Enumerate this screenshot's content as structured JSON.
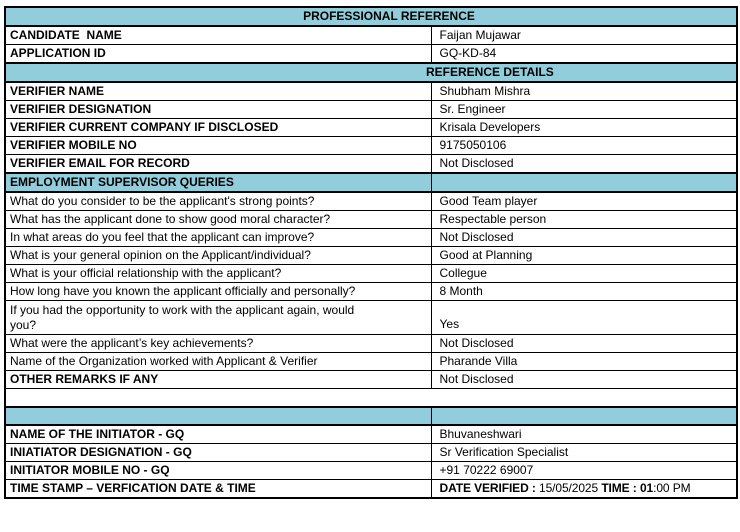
{
  "colors": {
    "header_bg": "#92CDDC",
    "border": "#000000",
    "text": "#000000"
  },
  "header": {
    "title": "PROFESSIONAL REFERENCE"
  },
  "candidate": {
    "label": "CANDIDATE  NAME",
    "value": "Faijan Mujawar"
  },
  "application_id": {
    "label": "APPLICATION ID",
    "value": "GQ-KD-84"
  },
  "reference_details": {
    "section_title": "REFERENCE DETAILS"
  },
  "verifier": {
    "name": {
      "label": "VERIFIER NAME",
      "value": "Shubham Mishra"
    },
    "designation": {
      "label": "VERIFIER DESIGNATION",
      "value": "Sr. Engineer"
    },
    "company": {
      "label": "VERIFIER CURRENT COMPANY IF DISCLOSED",
      "value": "Krisala Developers"
    },
    "mobile": {
      "label": "VERIFIER MOBILE NO",
      "value": "9175050106"
    },
    "email": {
      "label": "VERIFIER EMAIL FOR RECORD",
      "value": "Not Disclosed"
    }
  },
  "supervisor_queries": {
    "section_title": "EMPLOYMENT SUPERVISOR QUERIES",
    "q1": {
      "label": "What do you consider to be the applicant's strong points?",
      "value": "Good Team player"
    },
    "q2": {
      "label": "What has the applicant done to show good moral character?",
      "value": "Respectable person"
    },
    "q3": {
      "label": "In what areas do you feel that the applicant can improve?",
      "value": "Not Disclosed"
    },
    "q4": {
      "label": "What is your general opinion on the Applicant/individual?",
      "value": "Good at Planning"
    },
    "q5": {
      "label": "What is your official relationship with the applicant?",
      "value": "Collegue"
    },
    "q6": {
      "label": "How long have you known the applicant officially and personally?",
      "value": "8 Month"
    },
    "q7": {
      "label": "If you had the opportunity to work with the applicant again, would\nyou?",
      "value": "Yes"
    },
    "q8": {
      "label": "What were the applicant’s key achievements?",
      "value": "Not Disclosed"
    },
    "q9": {
      "label": "Name of the Organization worked with Applicant & Verifier",
      "value": "Pharande Villa"
    }
  },
  "other_remarks": {
    "label": "OTHER REMARKS IF ANY",
    "value": "Not Disclosed"
  },
  "initiator": {
    "name": {
      "label": "NAME OF THE INITIATOR - GQ",
      "value": "Bhuvaneshwari"
    },
    "designation": {
      "label": "INIATIATOR DESIGNATION - GQ",
      "value": "Sr Verification Specialist"
    },
    "mobile": {
      "label": "INITIATOR MOBILE NO - GQ",
      "value": "+91 70222 69007"
    },
    "timestamp": {
      "label": "TIME STAMP – VERFICATION DATE & TIME",
      "date_label": "DATE  VERIFIED  : ",
      "date_value": "15/05/2025  ",
      "time_label": "TIME : ",
      "time_value_bold": "01",
      "time_value_rest": ":00 PM"
    }
  }
}
